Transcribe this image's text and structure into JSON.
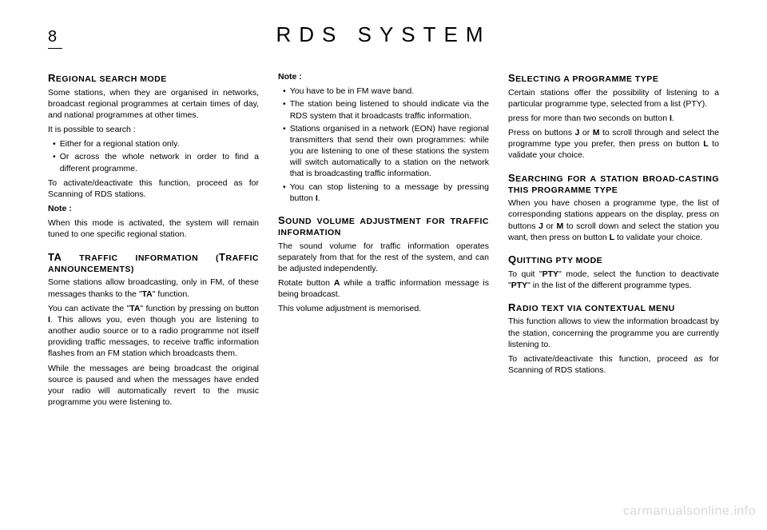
{
  "page_number": "8",
  "title": "RDS SYSTEM",
  "watermark": "carmanualsonline.info",
  "col1": {
    "s1": {
      "heading_cap": "R",
      "heading_rest": "EGIONAL SEARCH MODE",
      "p1": "Some stations, when they are organised in networks, broadcast regional programmes at certain times of day, and national programmes at other times.",
      "p2": "It is possible to search :",
      "b1": "Either for a regional station only.",
      "b2": "Or across the whole network in order to find a different programme.",
      "p3": "To activate/deactivate this function, proceed as for Scanning of RDS stations.",
      "note_label": "Note :",
      "note": "When this mode is activated, the system will remain tuned to one specific regional station."
    },
    "s2": {
      "heading_cap": "TA",
      "heading_mid": " TRAFFIC INFORMATION (",
      "heading_cap2": "T",
      "heading_rest": "RAFFIC ANNOUNCEMENTS)",
      "p1a": "Some stations allow broadcasting, only in FM, of these messages thanks to the \"",
      "p1b": "\" function.",
      "p2a": "You can activate the \"",
      "p2b": "\" function by pressing on button ",
      "p2c": ". This allows you, even though you are listening to another audio source or to a radio programme not itself providing traffic messages, to receive traffic information flashes from an FM station which broadcasts them.",
      "p3": "While the messages are being broadcast the original source is paused and when the messages have ended your radio will automatically revert to the music programme you were listening to.",
      "ta": "TA",
      "i": "I"
    }
  },
  "col2": {
    "note_label": "Note :",
    "b1": "You have to be in FM wave band.",
    "b2": "The station being listened to should indicate via the RDS system that it broadcasts traffic information.",
    "b3": "Stations organised in a network (EON) have regional transmitters that send their own programmes: while you are listening to one of these stations the system will switch automatically to a station on the network that is broadcasting traffic information.",
    "b4a": "You can stop listening to a message by pressing button ",
    "b4b": ".",
    "i": "I",
    "s2": {
      "heading_cap": "S",
      "heading_rest": "OUND VOLUME ADJUSTMENT FOR TRAFFIC INFORMATION",
      "p1": "The sound volume for traffic information operates separately from that for the rest of the system, and can be adjusted independently.",
      "p2a": "Rotate button ",
      "p2b": " while a traffic information message is being broadcast.",
      "a": "A",
      "p3": "This volume adjustment is memorised."
    }
  },
  "col3": {
    "s1": {
      "heading_cap": "S",
      "heading_rest": "ELECTING A PROGRAMME TYPE",
      "p1": "Certain stations offer the possibility of listening to a particular programme type, selected from a list (PTY).",
      "p2a": "press for more than two seconds on button ",
      "p2b": ".",
      "i": "I",
      "p3a": "Press on buttons ",
      "p3b": " or ",
      "p3c": " to scroll through and select the programme type you prefer, then press on button ",
      "p3d": " to validate your choice.",
      "j": "J",
      "m": "M",
      "l": "L"
    },
    "s2": {
      "heading_cap": "S",
      "heading_rest": "EARCHING FOR A STATION BROADCASTING THIS PROGRAMME TYPE",
      "dash": "-",
      "p1a": "When you have chosen a programme type, the list of corresponding stations appears on the display, press on buttons ",
      "p1b": " or ",
      "p1c": " to scroll down and select the station you want, then press on button ",
      "p1d": " to validate your choice.",
      "j": "J",
      "m": "M",
      "l": "L"
    },
    "s3": {
      "heading_cap": "Q",
      "heading_rest": "UITTING PTY MODE",
      "p1a": "To quit \"",
      "p1b": "\" mode, select the function to deactivate \"",
      "p1c": "\" in the list of the different programme types.",
      "pty": "PTY"
    },
    "s4": {
      "heading_cap": "R",
      "heading_rest": "ADIO TEXT VIA CONTEXTUAL MENU",
      "p1": "This function allows to view the information broadcast by the station, concerning the programme you are currently listening to.",
      "p2": "To activate/deactivate this function, proceed as for Scanning of RDS stations."
    }
  }
}
